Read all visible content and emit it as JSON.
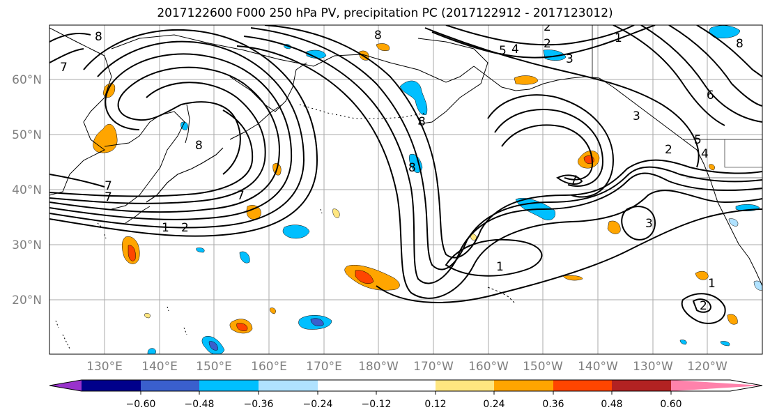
{
  "title": "2017122600 F000 250 hPa PV, precipitation PC (2017122912 - 2017123012)",
  "map": {
    "lat_labels": [
      "60°N",
      "50°N",
      "40°N",
      "30°N",
      "20°N"
    ],
    "lon_labels": [
      "130°E",
      "140°E",
      "150°E",
      "160°E",
      "170°E",
      "180°W",
      "170°W",
      "160°W",
      "150°W",
      "140°W",
      "130°W",
      "120°W"
    ],
    "grid": true
  },
  "contour_labels": [
    "8",
    "7",
    "7",
    "7",
    "1",
    "2",
    "8",
    "8",
    "8",
    "5",
    "4",
    "2",
    "3",
    "2",
    "7",
    "1",
    "8",
    "6",
    "3",
    "5",
    "4",
    "2",
    "3",
    "1",
    "1",
    "2",
    "8",
    "7"
  ],
  "colorbar": {
    "tick_labels": [
      "−0.60",
      "−0.48",
      "−0.36",
      "−0.24",
      "−0.12",
      "0.12",
      "0.24",
      "0.36",
      "0.48",
      "0.60"
    ],
    "colors": [
      "#9932CC",
      "#00008B",
      "#3A5FCD",
      "#00BFFF",
      "#B0E2FF",
      "#FFFFFF",
      "#FFE680",
      "#FFA500",
      "#FF4500",
      "#B22222",
      "#FF82AB"
    ]
  }
}
